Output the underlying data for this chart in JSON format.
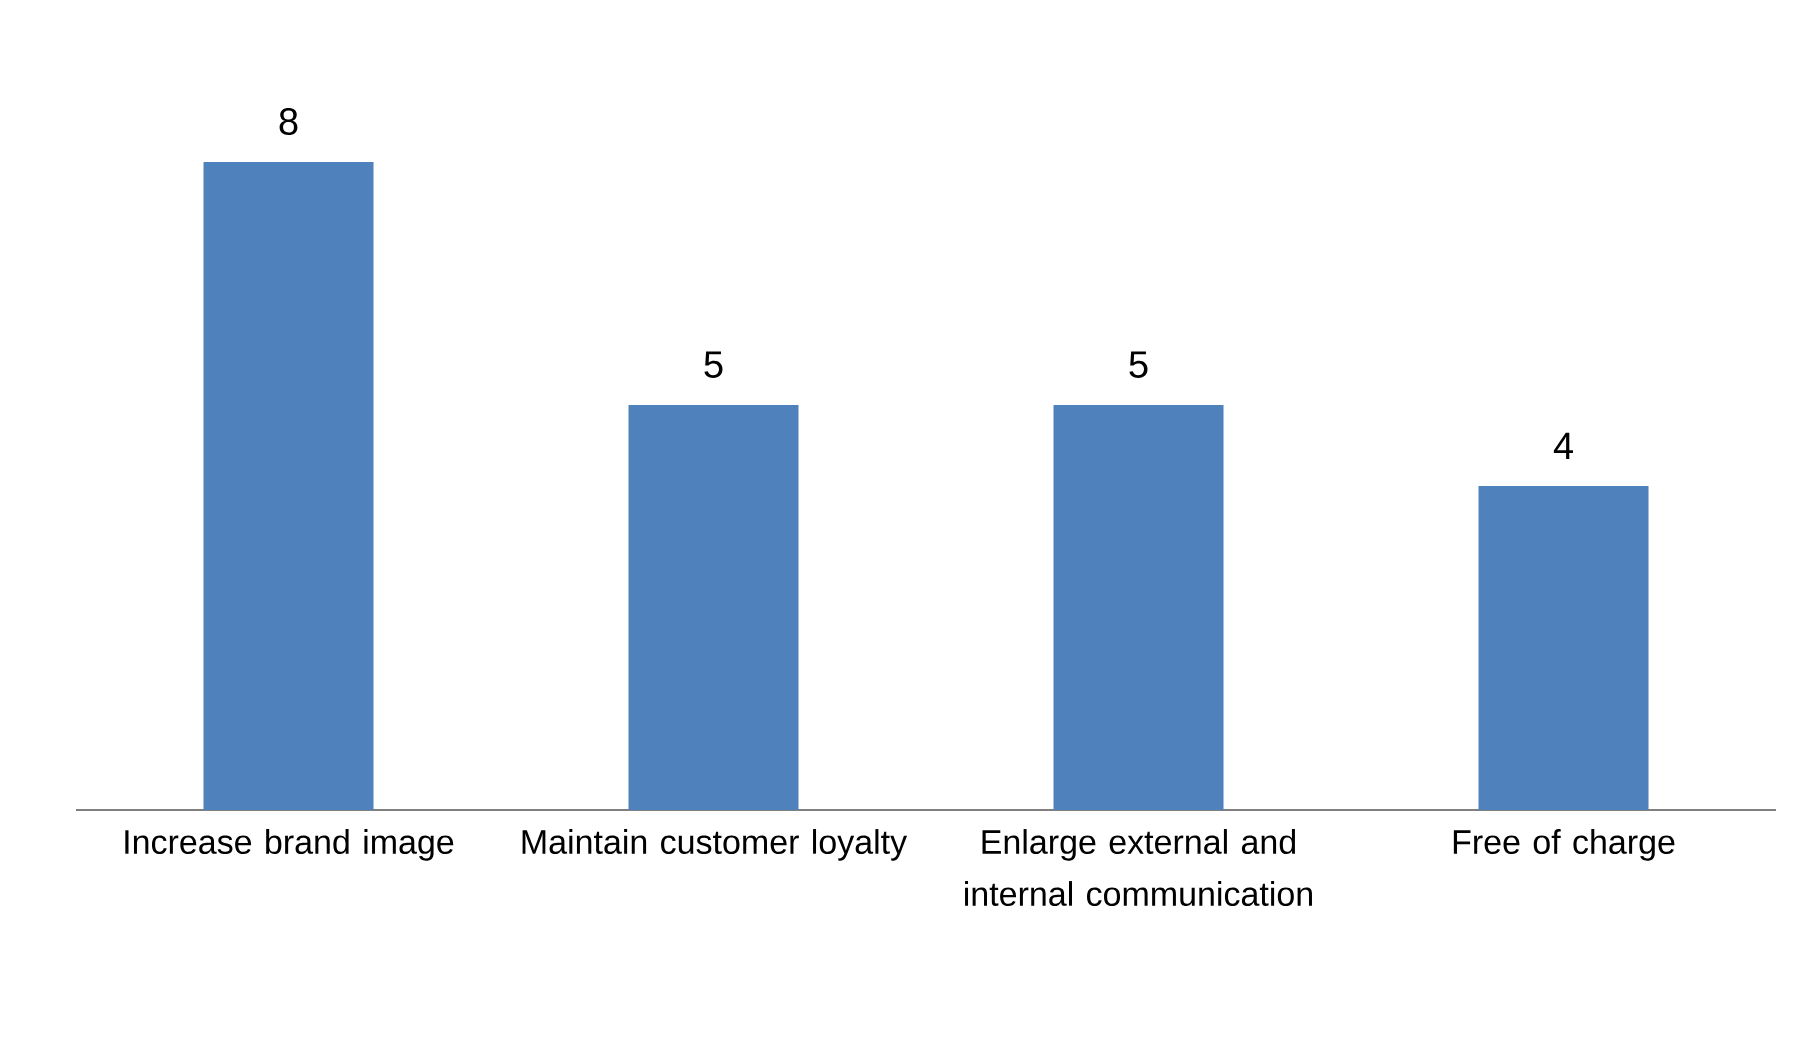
{
  "chart_data": {
    "type": "bar",
    "categories": [
      "Increase brand image",
      "Maintain customer loyalty",
      "Enlarge external and internal communication",
      "Free of charge"
    ],
    "values": [
      8,
      5,
      5,
      4
    ],
    "color": "#4f81bd",
    "data_labels": true
  }
}
